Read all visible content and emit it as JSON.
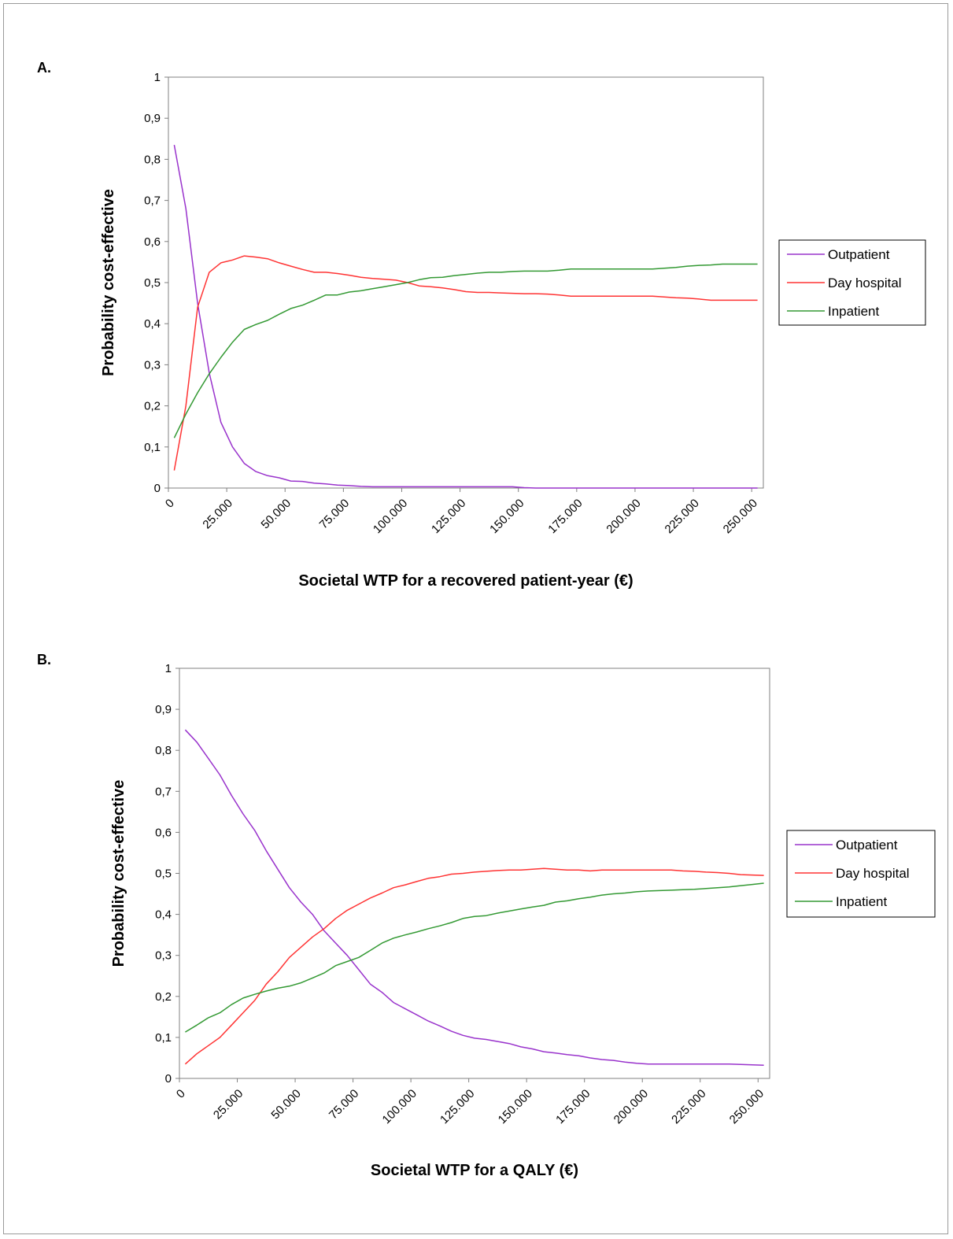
{
  "colors": {
    "Outpatient": "#9933cc",
    "Day hospital": "#ff3333",
    "Inpatient": "#339933"
  },
  "chart_data": [
    {
      "panel": "A.",
      "type": "line",
      "xlabel": "Societal WTP for a recovered patient-year (€)",
      "ylabel": "Probability cost-effective",
      "xlim": [
        0,
        255000
      ],
      "ylim": [
        0,
        1
      ],
      "xticks": [
        "0",
        "25.000",
        "50.000",
        "75.000",
        "100.000",
        "125.000",
        "150.000",
        "175.000",
        "200.000",
        "225.000",
        "250.000"
      ],
      "yticks": [
        "0",
        "0,1",
        "0,2",
        "0,3",
        "0,4",
        "0,5",
        "0,6",
        "0,7",
        "0,8",
        "0,9",
        "1"
      ],
      "grid": false,
      "legend": "right",
      "x": [
        2500,
        7500,
        12500,
        17500,
        22500,
        27500,
        32500,
        37500,
        42500,
        47500,
        52500,
        57500,
        62500,
        67500,
        72500,
        77500,
        82500,
        87500,
        92500,
        97500,
        102500,
        107500,
        112500,
        117500,
        122500,
        127500,
        132500,
        137500,
        142500,
        147500,
        152500,
        157500,
        162500,
        167500,
        172500,
        177500,
        182500,
        187500,
        192500,
        197500,
        202500,
        207500,
        212500,
        217500,
        222500,
        227500,
        232500,
        237500,
        242500,
        247500,
        252500
      ],
      "series": [
        {
          "name": "Outpatient",
          "values": [
            0.835,
            0.68,
            0.45,
            0.28,
            0.16,
            0.1,
            0.06,
            0.04,
            0.03,
            0.025,
            0.017,
            0.016,
            0.012,
            0.01,
            0.007,
            0.006,
            0.004,
            0.003,
            0.003,
            0.003,
            0.003,
            0.003,
            0.003,
            0.003,
            0.003,
            0.003,
            0.003,
            0.003,
            0.003,
            0.003,
            0.001,
            0,
            0,
            0,
            0,
            0,
            0,
            0,
            0,
            0,
            0,
            0,
            0,
            0,
            0,
            0,
            0,
            0,
            0,
            0,
            0
          ]
        },
        {
          "name": "Day hospital",
          "values": [
            0.043,
            0.2,
            0.44,
            0.525,
            0.548,
            0.555,
            0.565,
            0.562,
            0.558,
            0.548,
            0.54,
            0.532,
            0.525,
            0.525,
            0.522,
            0.518,
            0.513,
            0.51,
            0.508,
            0.506,
            0.5,
            0.492,
            0.49,
            0.487,
            0.483,
            0.478,
            0.476,
            0.476,
            0.475,
            0.474,
            0.473,
            0.473,
            0.472,
            0.47,
            0.467,
            0.467,
            0.467,
            0.467,
            0.467,
            0.467,
            0.467,
            0.467,
            0.465,
            0.463,
            0.462,
            0.46,
            0.457,
            0.457,
            0.457,
            0.457,
            0.457
          ]
        },
        {
          "name": "Inpatient",
          "values": [
            0.122,
            0.18,
            0.232,
            0.278,
            0.318,
            0.355,
            0.386,
            0.398,
            0.408,
            0.423,
            0.437,
            0.445,
            0.457,
            0.47,
            0.47,
            0.477,
            0.48,
            0.485,
            0.49,
            0.495,
            0.5,
            0.507,
            0.512,
            0.513,
            0.517,
            0.52,
            0.523,
            0.525,
            0.525,
            0.527,
            0.528,
            0.528,
            0.528,
            0.53,
            0.533,
            0.533,
            0.533,
            0.533,
            0.533,
            0.533,
            0.533,
            0.533,
            0.535,
            0.537,
            0.54,
            0.542,
            0.543,
            0.545,
            0.545,
            0.545,
            0.545
          ]
        }
      ]
    },
    {
      "panel": "B.",
      "type": "line",
      "xlabel": "Societal WTP for a QALY (€)",
      "ylabel": "Probability cost-effective",
      "xlim": [
        0,
        255000
      ],
      "ylim": [
        0,
        1
      ],
      "xticks": [
        "0",
        "25.000",
        "50.000",
        "75.000",
        "100.000",
        "125.000",
        "150.000",
        "175.000",
        "200.000",
        "225.000",
        "250.000"
      ],
      "yticks": [
        "0",
        "0,1",
        "0,2",
        "0,3",
        "0,4",
        "0,5",
        "0,6",
        "0,7",
        "0,8",
        "0,9",
        "1"
      ],
      "grid": false,
      "legend": "right",
      "x": [
        2500,
        7500,
        12500,
        17500,
        22500,
        27500,
        32500,
        37500,
        42500,
        47500,
        52500,
        57500,
        62500,
        67500,
        72500,
        77500,
        82500,
        87500,
        92500,
        97500,
        102500,
        107500,
        112500,
        117500,
        122500,
        127500,
        132500,
        137500,
        142500,
        147500,
        152500,
        157500,
        162500,
        167500,
        172500,
        177500,
        182500,
        187500,
        192500,
        197500,
        202500,
        207500,
        212500,
        217500,
        222500,
        227500,
        232500,
        237500,
        242500,
        247500,
        252500
      ],
      "series": [
        {
          "name": "Outpatient",
          "values": [
            0.85,
            0.82,
            0.78,
            0.74,
            0.69,
            0.645,
            0.605,
            0.555,
            0.51,
            0.465,
            0.43,
            0.4,
            0.36,
            0.33,
            0.3,
            0.265,
            0.23,
            0.21,
            0.185,
            0.17,
            0.155,
            0.14,
            0.128,
            0.115,
            0.105,
            0.098,
            0.095,
            0.09,
            0.085,
            0.077,
            0.072,
            0.065,
            0.062,
            0.058,
            0.055,
            0.05,
            0.046,
            0.044,
            0.04,
            0.037,
            0.035,
            0.035,
            0.035,
            0.035,
            0.035,
            0.035,
            0.035,
            0.035,
            0.034,
            0.033,
            0.032
          ]
        },
        {
          "name": "Day hospital",
          "values": [
            0.035,
            0.06,
            0.08,
            0.1,
            0.13,
            0.16,
            0.19,
            0.23,
            0.26,
            0.295,
            0.32,
            0.345,
            0.365,
            0.39,
            0.41,
            0.425,
            0.44,
            0.452,
            0.465,
            0.472,
            0.48,
            0.488,
            0.492,
            0.498,
            0.5,
            0.503,
            0.505,
            0.507,
            0.508,
            0.508,
            0.51,
            0.512,
            0.51,
            0.508,
            0.508,
            0.506,
            0.508,
            0.508,
            0.508,
            0.508,
            0.508,
            0.508,
            0.508,
            0.506,
            0.505,
            0.503,
            0.502,
            0.5,
            0.497,
            0.496,
            0.495
          ]
        },
        {
          "name": "Inpatient",
          "values": [
            0.113,
            0.13,
            0.148,
            0.16,
            0.18,
            0.196,
            0.205,
            0.213,
            0.22,
            0.225,
            0.233,
            0.245,
            0.257,
            0.275,
            0.285,
            0.295,
            0.312,
            0.33,
            0.342,
            0.35,
            0.357,
            0.365,
            0.372,
            0.38,
            0.39,
            0.395,
            0.397,
            0.403,
            0.408,
            0.413,
            0.418,
            0.422,
            0.43,
            0.433,
            0.438,
            0.442,
            0.447,
            0.45,
            0.452,
            0.455,
            0.457,
            0.458,
            0.459,
            0.46,
            0.461,
            0.463,
            0.465,
            0.467,
            0.47,
            0.473,
            0.476
          ]
        }
      ]
    }
  ]
}
